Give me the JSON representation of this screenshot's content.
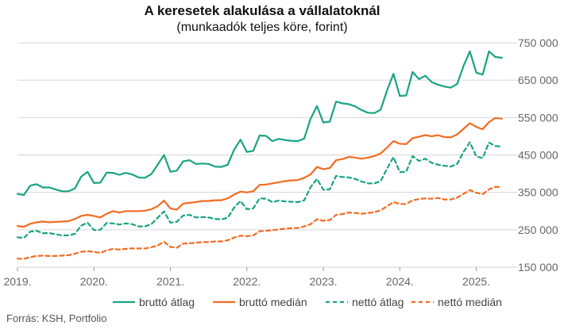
{
  "chart_data": {
    "type": "line",
    "title": "A keresetek alakulása a vállalatoknál",
    "subtitle": "(munkaadók teljes köre, forint)",
    "source": "Forrás: KSH, Portfolio",
    "xlim": [
      2019.0,
      2025.42
    ],
    "ylim": [
      150000,
      750000
    ],
    "y_ticks": [
      750000,
      650000,
      550000,
      450000,
      350000,
      250000,
      150000
    ],
    "y_tick_labels": [
      "750 000",
      "650 000",
      "550 000",
      "450 000",
      "350 000",
      "250 000",
      "150 000"
    ],
    "x_ticks": [
      2019,
      2020,
      2021,
      2022,
      2023,
      2024,
      2025
    ],
    "x_tick_labels": [
      "2019.",
      "2020.",
      "2021.",
      "2022.",
      "2023.",
      "2024.",
      "2025."
    ],
    "grid": "horizontal",
    "legend_position": "bottom",
    "series": [
      {
        "name": "bruttó átlag",
        "color": "#1aa383",
        "dash": "solid",
        "values": [
          346000,
          343000,
          368000,
          372000,
          363000,
          363000,
          358000,
          353000,
          353000,
          360000,
          392000,
          405000,
          375000,
          376000,
          403000,
          402000,
          397000,
          402000,
          398000,
          390000,
          389000,
          399000,
          424000,
          450000,
          405000,
          408000,
          433000,
          436000,
          426000,
          427000,
          426000,
          419000,
          418000,
          424000,
          464000,
          491000,
          458000,
          461000,
          502000,
          501000,
          487000,
          493000,
          490000,
          488000,
          487000,
          494000,
          547000,
          581000,
          537000,
          539000,
          593000,
          588000,
          586000,
          580000,
          570000,
          563000,
          562000,
          571000,
          623000,
          667000,
          608000,
          609000,
          672000,
          653000,
          662000,
          645000,
          638000,
          633000,
          630000,
          640000,
          688000,
          727000,
          670000,
          665000,
          727000,
          712000,
          710000
        ]
      },
      {
        "name": "bruttó medián",
        "color": "#f26b21",
        "dash": "solid",
        "values": [
          260000,
          258000,
          266000,
          270000,
          272000,
          270000,
          271000,
          272000,
          273000,
          279000,
          287000,
          290000,
          287000,
          283000,
          293000,
          300000,
          296000,
          300000,
          300000,
          300000,
          301000,
          305000,
          313000,
          328000,
          307000,
          304000,
          320000,
          322000,
          324000,
          327000,
          327000,
          329000,
          329000,
          334000,
          344000,
          352000,
          350000,
          353000,
          370000,
          371000,
          374000,
          377000,
          380000,
          382000,
          383000,
          389000,
          398000,
          418000,
          412000,
          415000,
          436000,
          439000,
          445000,
          443000,
          440000,
          443000,
          447000,
          454000,
          470000,
          487000,
          480000,
          479000,
          495000,
          499000,
          503000,
          500000,
          503000,
          498000,
          497000,
          505000,
          520000,
          535000,
          525000,
          519000,
          538000,
          549000,
          547000
        ]
      },
      {
        "name": "nettó átlag",
        "color": "#1aa383",
        "dash": "dashed",
        "values": [
          230000,
          228000,
          245000,
          247000,
          241000,
          241000,
          238000,
          235000,
          235000,
          239000,
          261000,
          269000,
          249000,
          250000,
          268000,
          267000,
          264000,
          267000,
          265000,
          259000,
          259000,
          265000,
          282000,
          299000,
          269000,
          271000,
          288000,
          290000,
          283000,
          284000,
          283000,
          279000,
          278000,
          282000,
          309000,
          327000,
          305000,
          307000,
          334000,
          333000,
          324000,
          328000,
          326000,
          325000,
          324000,
          329000,
          364000,
          386000,
          357000,
          358000,
          394000,
          391000,
          390000,
          386000,
          379000,
          374000,
          374000,
          380000,
          414000,
          444000,
          404000,
          405000,
          447000,
          434000,
          440000,
          429000,
          424000,
          421000,
          419000,
          426000,
          458000,
          484000,
          446000,
          442000,
          483000,
          474000,
          472000
        ]
      },
      {
        "name": "nettó medián",
        "color": "#f26b21",
        "dash": "dashed",
        "values": [
          173000,
          172000,
          177000,
          180000,
          181000,
          180000,
          180000,
          181000,
          182000,
          186000,
          191000,
          193000,
          191000,
          188000,
          195000,
          199000,
          197000,
          199000,
          200000,
          200000,
          200000,
          203000,
          208000,
          218000,
          204000,
          202000,
          213000,
          214000,
          215000,
          217000,
          217000,
          219000,
          219000,
          222000,
          229000,
          234000,
          233000,
          235000,
          246000,
          247000,
          249000,
          251000,
          253000,
          254000,
          255000,
          259000,
          265000,
          278000,
          274000,
          276000,
          290000,
          292000,
          296000,
          295000,
          293000,
          295000,
          297000,
          302000,
          313000,
          324000,
          319000,
          319000,
          329000,
          332000,
          334000,
          333000,
          335000,
          331000,
          331000,
          336000,
          346000,
          356000,
          349000,
          345000,
          358000,
          365000,
          364000
        ]
      }
    ]
  }
}
